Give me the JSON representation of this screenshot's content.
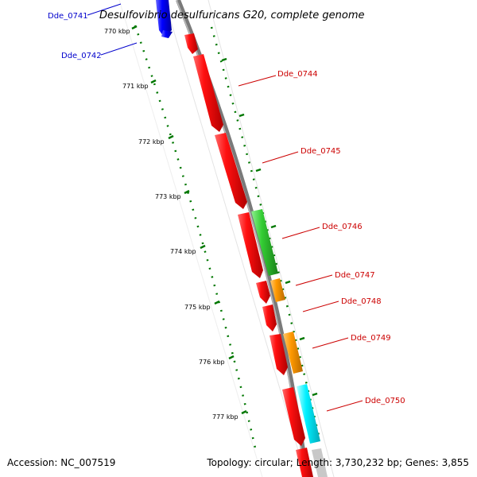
{
  "title": "Desulfovibrio desulfuricans G20, complete genome",
  "footer": {
    "accession": "Accession: NC_007519",
    "summary": "Topology: circular; Length: 3,730,232 bp; Genes: 3,855"
  },
  "scale_labels": [
    "770 kbp",
    "771 kbp",
    "772 kbp",
    "773 kbp",
    "774 kbp",
    "775 kbp",
    "776 kbp",
    "777 kbp"
  ],
  "gene_labels": {
    "blue": [
      "Dde_0741",
      "Dde_0742"
    ],
    "red": [
      "Dde_0744",
      "Dde_0745",
      "Dde_0746",
      "Dde_0747",
      "Dde_0748",
      "Dde_0749",
      "Dde_0750"
    ]
  },
  "colors": {
    "forward_gene": "#ff0000",
    "reverse_gene_blue": "#0000ff",
    "green_gene": "#33cc33",
    "orange_gene": "#ff9900",
    "cyan_gene": "#00ffff",
    "backbone": "#808080",
    "tick": "#007700",
    "label_blue": "#0000cc",
    "label_red": "#cc0000"
  }
}
